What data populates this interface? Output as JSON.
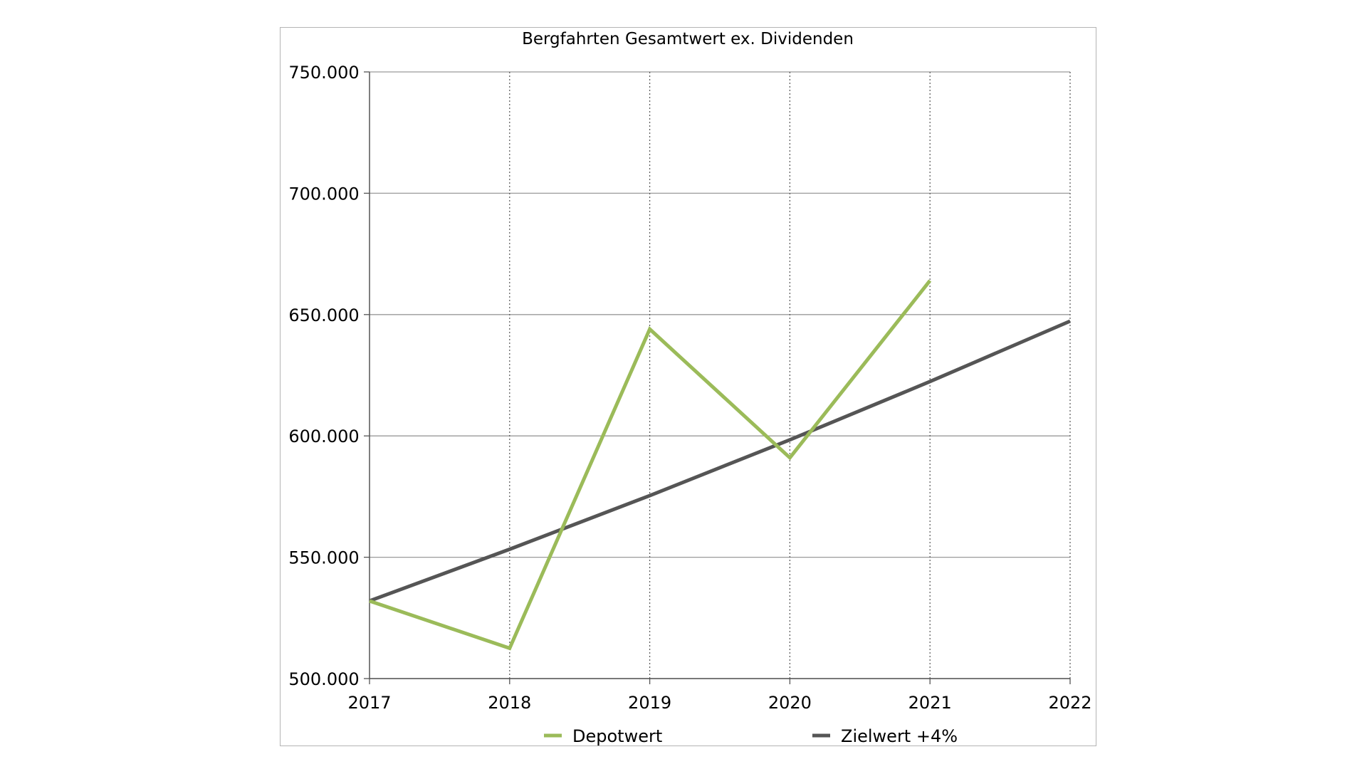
{
  "chart_data": {
    "type": "line",
    "title": "Bergfahrten Gesamtwert ex. Dividenden",
    "xlabel": "",
    "ylabel": "",
    "x": [
      "2017",
      "2018",
      "2019",
      "2020",
      "2021",
      "2022"
    ],
    "ylim": [
      500000,
      750000
    ],
    "yticks": [
      500000,
      550000,
      600000,
      650000,
      700000,
      750000
    ],
    "ytick_labels": [
      "500.000",
      "550.000",
      "600.000",
      "650.000",
      "700.000",
      "750.000"
    ],
    "grid": {
      "horizontal": "solid",
      "vertical": "dotted"
    },
    "legend_position": "bottom",
    "series": [
      {
        "name": "Depotwert",
        "color": "#9bbb59",
        "values": [
          532000,
          512500,
          644000,
          591000,
          664000,
          null
        ]
      },
      {
        "name": "Zielwert +4%",
        "color": "#555555",
        "values": [
          532000,
          553300,
          575400,
          598400,
          622400,
          647300
        ]
      }
    ]
  }
}
